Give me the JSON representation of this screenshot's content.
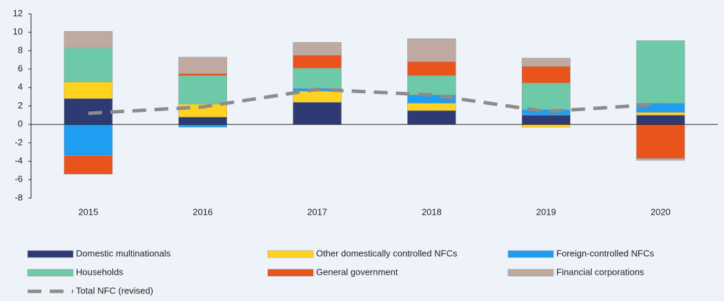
{
  "chart_data": {
    "type": "bar",
    "stacked": true,
    "categories": [
      "2015",
      "2016",
      "2017",
      "2018",
      "2019",
      "2020"
    ],
    "series": [
      {
        "name": "Domestic multinationals",
        "color": "#2e3a74",
        "values": [
          2.8,
          0.8,
          2.4,
          1.5,
          1.0,
          1.0
        ]
      },
      {
        "name": "Other domestically controlled NFCs",
        "color": "#ffd21f",
        "values": [
          1.8,
          1.4,
          1.2,
          0.8,
          -0.3,
          0.3
        ]
      },
      {
        "name": "Foreign-controlled NFCs",
        "color": "#1f9df0",
        "values": [
          -3.4,
          -0.3,
          0.3,
          0.9,
          0.6,
          1.0
        ]
      },
      {
        "name": "Households",
        "color": "#6dc9a8",
        "values": [
          3.7,
          3.1,
          2.2,
          2.1,
          2.9,
          6.8
        ]
      },
      {
        "name": "General government",
        "color": "#e8541c",
        "values": [
          -2.0,
          0.2,
          1.4,
          1.5,
          1.8,
          -3.7
        ]
      },
      {
        "name": "Financial corporations",
        "color": "#bfaaa2",
        "values": [
          1.8,
          1.8,
          1.4,
          2.5,
          0.9,
          -0.2
        ]
      },
      {
        "name": "Total NFC (revised)",
        "type": "line",
        "color": "#8c8c8c",
        "dashed": true,
        "values": [
          1.2,
          1.9,
          3.8,
          3.2,
          1.4,
          2.2
        ]
      }
    ],
    "ylim": [
      -8,
      12
    ],
    "yticks": [
      -8,
      -6,
      -4,
      -2,
      0,
      2,
      4,
      6,
      8,
      10,
      12
    ]
  }
}
